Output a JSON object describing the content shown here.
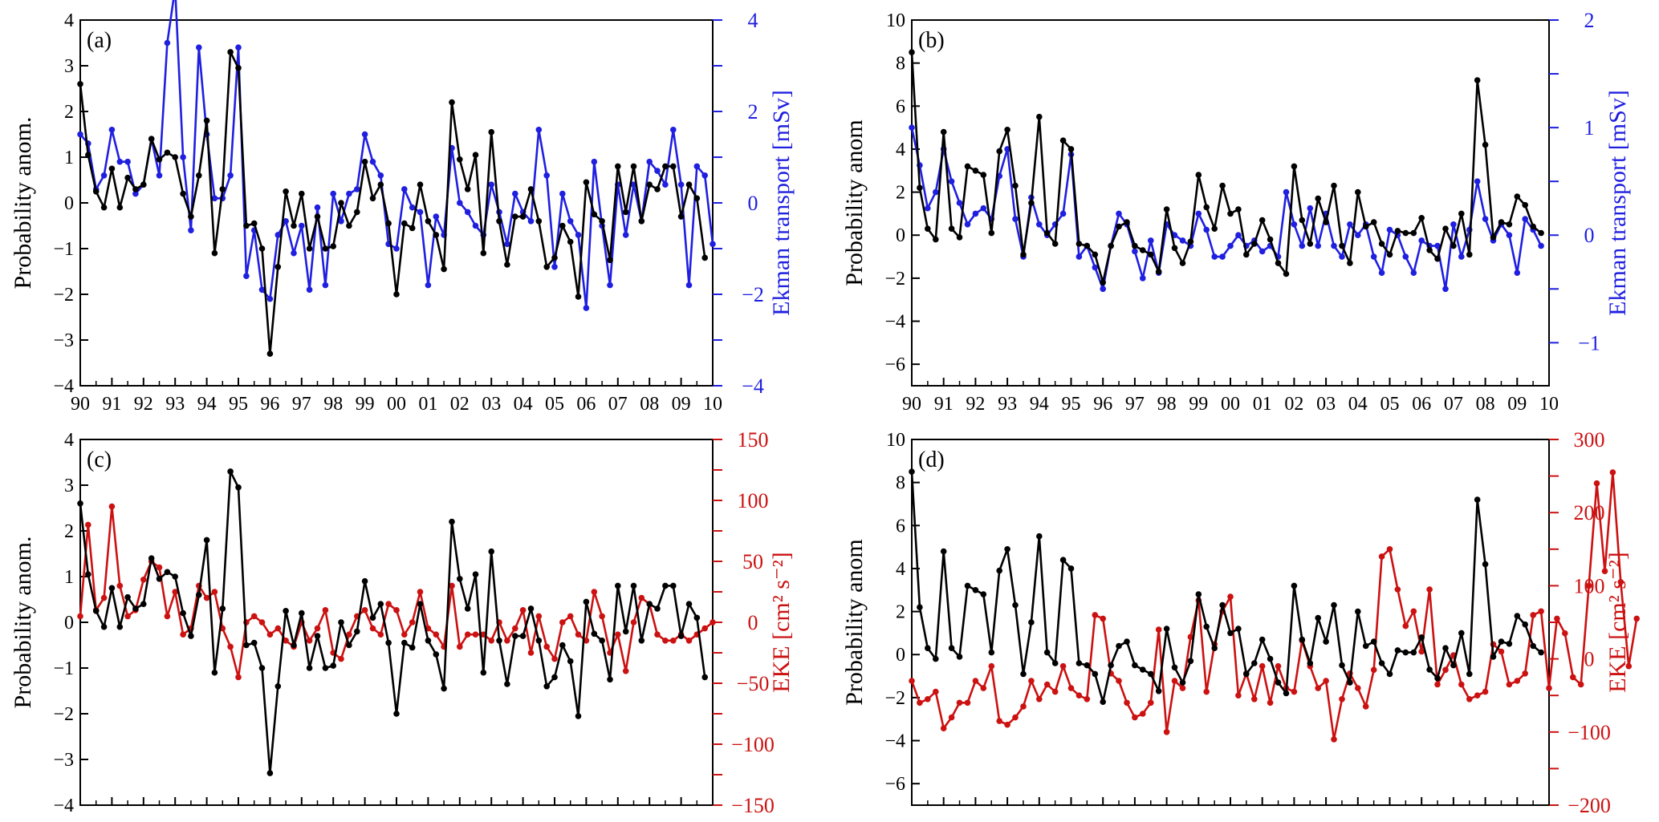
{
  "chart_data": [
    {
      "id": "a",
      "type": "line",
      "panel_label": "(a)",
      "start_year": 1990,
      "samples_per_year": 4,
      "left_axis": {
        "label": "Probability anom.",
        "ylim": [
          -4,
          4
        ],
        "ticks": [
          -4,
          -3,
          -2,
          -1,
          0,
          1,
          2,
          3,
          4
        ],
        "color": "#000000"
      },
      "right_axis": {
        "label": "Ekman transport [mSv]",
        "ylim": [
          -4,
          4
        ],
        "ticks": [
          -4,
          -2,
          0,
          2,
          4
        ],
        "minor_ticks": [
          -3,
          -1,
          1,
          3
        ],
        "color": "#1f1fe0"
      },
      "x_ticks": [
        "90",
        "91",
        "92",
        "93",
        "94",
        "95",
        "96",
        "97",
        "98",
        "99",
        "00",
        "01",
        "02",
        "03",
        "04",
        "05",
        "06",
        "07",
        "08",
        "09",
        "10"
      ],
      "series": [
        {
          "name": "Probability anomaly",
          "axis": "left",
          "color": "#000000",
          "values": [
            2.6,
            1.05,
            0.25,
            -0.1,
            0.75,
            -0.1,
            0.55,
            0.3,
            0.4,
            1.4,
            0.95,
            1.1,
            1.0,
            0.2,
            -0.3,
            0.6,
            1.8,
            -1.1,
            0.3,
            3.3,
            2.95,
            -0.5,
            -0.45,
            -1.0,
            -3.3,
            -1.4,
            0.25,
            -0.5,
            0.2,
            -1.0,
            -0.3,
            -1.0,
            -0.95,
            0.0,
            -0.5,
            -0.2,
            0.9,
            0.1,
            0.4,
            -0.45,
            -2.0,
            -0.45,
            -0.55,
            0.4,
            -0.4,
            -0.7,
            -1.45,
            2.2,
            0.95,
            0.3,
            1.05,
            -1.1,
            1.55,
            -0.4,
            -1.35,
            -0.3,
            -0.3,
            0.3,
            -0.4,
            -1.4,
            -1.2,
            -0.5,
            -0.85,
            -2.05,
            0.45,
            -0.25,
            -0.4,
            -1.25,
            0.8,
            -0.2,
            0.8,
            -0.4,
            0.4,
            0.3,
            0.8,
            0.8,
            -0.3,
            0.4,
            0.1,
            -1.2
          ]
        },
        {
          "name": "Ekman transport",
          "axis": "right",
          "color": "#1f1fe0",
          "values": [
            1.5,
            1.3,
            0.3,
            0.6,
            1.6,
            0.9,
            0.9,
            0.2,
            0.4,
            1.4,
            0.6,
            3.5,
            4.7,
            1.0,
            -0.6,
            3.4,
            1.5,
            0.1,
            0.1,
            0.6,
            3.4,
            -1.6,
            -0.6,
            -1.9,
            -2.1,
            -0.7,
            -0.4,
            -1.1,
            -0.5,
            -1.9,
            -0.1,
            -1.8,
            0.2,
            -0.4,
            0.2,
            0.3,
            1.5,
            0.9,
            0.6,
            -0.9,
            -1.0,
            0.3,
            -0.1,
            -0.2,
            -1.8,
            -0.3,
            -0.7,
            1.2,
            0.0,
            -0.2,
            -0.5,
            -0.7,
            0.4,
            -0.2,
            -0.9,
            0.2,
            -0.2,
            -0.4,
            1.6,
            0.6,
            -1.4,
            0.2,
            -0.4,
            -0.7,
            -2.3,
            0.9,
            -0.5,
            -1.8,
            0.4,
            -0.7,
            0.4,
            -0.4,
            0.9,
            0.7,
            0.4,
            1.6,
            0.4,
            -1.8,
            0.8,
            0.6,
            -0.9
          ]
        }
      ]
    },
    {
      "id": "b",
      "type": "line",
      "panel_label": "(b)",
      "start_year": 1990,
      "samples_per_year": 4,
      "left_axis": {
        "label": "Probability anom",
        "ylim": [
          -7,
          10
        ],
        "ticks": [
          -6,
          -4,
          -2,
          0,
          2,
          4,
          6,
          8,
          10
        ],
        "color": "#000000"
      },
      "right_axis": {
        "label": "Ekman transport [mSv]",
        "ylim": [
          -1.4,
          2
        ],
        "ticks": [
          -1,
          0,
          1,
          2
        ],
        "minor_ticks": [
          -0.5,
          0.5,
          1.5
        ],
        "color": "#1f1fe0"
      },
      "x_ticks": [
        "90",
        "91",
        "92",
        "93",
        "94",
        "95",
        "96",
        "97",
        "98",
        "99",
        "00",
        "01",
        "02",
        "03",
        "04",
        "05",
        "06",
        "07",
        "08",
        "09",
        "10"
      ],
      "series": [
        {
          "name": "Probability anomaly",
          "axis": "left",
          "color": "#000000",
          "values": [
            8.5,
            2.2,
            0.3,
            -0.2,
            4.8,
            0.3,
            -0.1,
            3.2,
            3.0,
            2.8,
            0.1,
            3.9,
            4.9,
            2.3,
            -0.9,
            1.5,
            5.5,
            0.1,
            -0.4,
            4.4,
            4.0,
            -0.4,
            -0.5,
            -0.9,
            -2.2,
            -0.5,
            0.4,
            0.6,
            -0.5,
            -0.7,
            -0.9,
            -1.7,
            1.2,
            -0.6,
            -1.3,
            -0.3,
            2.8,
            1.3,
            0.3,
            2.3,
            1.0,
            1.2,
            -0.9,
            -0.4,
            0.7,
            -0.2,
            -1.3,
            -1.8,
            3.2,
            0.7,
            -0.4,
            1.7,
            0.6,
            2.3,
            -0.5,
            -1.3,
            2.0,
            0.4,
            0.6,
            -0.4,
            -0.9,
            0.2,
            0.1,
            0.1,
            0.8,
            -0.7,
            -1.1,
            0.3,
            -0.5,
            1.0,
            -0.9,
            7.2,
            4.2,
            -0.1,
            0.6,
            0.5,
            1.8,
            1.4,
            0.4,
            0.1
          ]
        },
        {
          "name": "Ekman transport",
          "axis": "right",
          "color": "#1f1fe0",
          "values": [
            1.0,
            0.65,
            0.25,
            0.4,
            0.8,
            0.5,
            0.3,
            0.1,
            0.2,
            0.25,
            0.15,
            0.55,
            0.8,
            0.15,
            -0.2,
            0.35,
            0.1,
            0.0,
            0.1,
            0.2,
            0.75,
            -0.2,
            -0.1,
            -0.3,
            -0.5,
            -0.1,
            0.2,
            0.1,
            -0.15,
            -0.4,
            -0.05,
            -0.35,
            0.1,
            0.0,
            -0.05,
            -0.1,
            0.2,
            0.05,
            -0.2,
            -0.2,
            -0.1,
            0.0,
            -0.1,
            -0.05,
            -0.15,
            -0.1,
            -0.2,
            0.4,
            0.1,
            -0.1,
            0.25,
            -0.1,
            0.2,
            -0.1,
            -0.2,
            0.1,
            0.0,
            0.1,
            -0.2,
            -0.35,
            0.05,
            0.0,
            -0.2,
            -0.35,
            -0.05,
            -0.1,
            -0.1,
            -0.5,
            0.1,
            -0.2,
            0.05,
            0.5,
            0.15,
            -0.05,
            0.1,
            0.0,
            -0.35,
            0.15,
            0.05,
            -0.1
          ]
        }
      ]
    },
    {
      "id": "c",
      "type": "line",
      "panel_label": "(c)",
      "start_year": 1990,
      "samples_per_year": 4,
      "left_axis": {
        "label": "Probability anom.",
        "ylim": [
          -4,
          4
        ],
        "ticks": [
          -4,
          -3,
          -2,
          -1,
          0,
          1,
          2,
          3,
          4
        ],
        "color": "#000000"
      },
      "right_axis": {
        "label": "EKE [cm² s⁻²]",
        "ylim": [
          -150,
          150
        ],
        "ticks": [
          -150,
          -100,
          -50,
          0,
          50,
          100,
          150
        ],
        "minor_ticks": [
          -125,
          -75,
          -25,
          25,
          75,
          125
        ],
        "color": "#cc1111"
      },
      "x_ticks": [],
      "series": [
        {
          "name": "Probability anomaly",
          "axis": "left",
          "color": "#000000",
          "values": [
            2.6,
            1.05,
            0.25,
            -0.1,
            0.75,
            -0.1,
            0.55,
            0.3,
            0.4,
            1.4,
            0.95,
            1.1,
            1.0,
            0.2,
            -0.3,
            0.6,
            1.8,
            -1.1,
            0.3,
            3.3,
            2.95,
            -0.5,
            -0.45,
            -1.0,
            -3.3,
            -1.4,
            0.25,
            -0.5,
            0.2,
            -1.0,
            -0.3,
            -1.0,
            -0.95,
            0.0,
            -0.5,
            -0.2,
            0.9,
            0.1,
            0.4,
            -0.45,
            -2.0,
            -0.45,
            -0.55,
            0.4,
            -0.4,
            -0.7,
            -1.45,
            2.2,
            0.95,
            0.3,
            1.05,
            -1.1,
            1.55,
            -0.4,
            -1.35,
            -0.3,
            -0.3,
            0.3,
            -0.4,
            -1.4,
            -1.2,
            -0.5,
            -0.85,
            -2.05,
            0.45,
            -0.25,
            -0.4,
            -1.25,
            0.8,
            -0.2,
            0.8,
            -0.4,
            0.4,
            0.3,
            0.8,
            0.8,
            -0.3,
            0.4,
            0.1,
            -1.2
          ]
        },
        {
          "name": "EKE",
          "axis": "right",
          "color": "#cc1111",
          "values": [
            5,
            80,
            10,
            20,
            95,
            30,
            5,
            10,
            35,
            50,
            45,
            5,
            25,
            -10,
            -5,
            30,
            20,
            25,
            -5,
            -20,
            -45,
            0,
            5,
            0,
            -10,
            -5,
            -15,
            -20,
            0,
            -15,
            -5,
            10,
            -25,
            -30,
            -10,
            5,
            10,
            -5,
            -10,
            15,
            10,
            -10,
            0,
            25,
            -5,
            -10,
            -20,
            30,
            -20,
            -10,
            -10,
            -10,
            -15,
            0,
            -15,
            -5,
            10,
            -25,
            5,
            -20,
            -30,
            0,
            5,
            -10,
            -15,
            25,
            5,
            -25,
            -10,
            -40,
            0,
            20,
            15,
            -10,
            -15,
            -15,
            -10,
            -15,
            -10,
            -5,
            0
          ]
        }
      ]
    },
    {
      "id": "d",
      "type": "line",
      "panel_label": "(d)",
      "start_year": 1990,
      "samples_per_year": 4,
      "left_axis": {
        "label": "Probability anom",
        "ylim": [
          -7,
          10
        ],
        "ticks": [
          -6,
          -4,
          -2,
          0,
          2,
          4,
          6,
          8,
          10
        ],
        "color": "#000000"
      },
      "right_axis": {
        "label": "EKE [cm² s⁻²]",
        "ylim": [
          -200,
          300
        ],
        "ticks": [
          -200,
          -100,
          0,
          100,
          200,
          300
        ],
        "minor_ticks": [
          -150,
          -50,
          50,
          150,
          250
        ],
        "color": "#cc1111"
      },
      "x_ticks": [],
      "series": [
        {
          "name": "Probability anomaly",
          "axis": "left",
          "color": "#000000",
          "values": [
            8.5,
            2.2,
            0.3,
            -0.2,
            4.8,
            0.3,
            -0.1,
            3.2,
            3.0,
            2.8,
            0.1,
            3.9,
            4.9,
            2.3,
            -0.9,
            1.5,
            5.5,
            0.1,
            -0.4,
            4.4,
            4.0,
            -0.4,
            -0.5,
            -0.9,
            -2.2,
            -0.5,
            0.4,
            0.6,
            -0.5,
            -0.7,
            -0.9,
            -1.7,
            1.2,
            -0.6,
            -1.3,
            -0.3,
            2.8,
            1.3,
            0.3,
            2.3,
            1.0,
            1.2,
            -0.9,
            -0.4,
            0.7,
            -0.2,
            -1.3,
            -1.8,
            3.2,
            0.7,
            -0.4,
            1.7,
            0.6,
            2.3,
            -0.5,
            -1.3,
            2.0,
            0.4,
            0.6,
            -0.4,
            -0.9,
            0.2,
            0.1,
            0.1,
            0.8,
            -0.7,
            -1.1,
            0.3,
            -0.5,
            1.0,
            -0.9,
            7.2,
            4.2,
            -0.1,
            0.6,
            0.5,
            1.8,
            1.4,
            0.4,
            0.1
          ]
        },
        {
          "name": "EKE",
          "axis": "right",
          "color": "#cc1111",
          "values": [
            -30,
            -60,
            -55,
            -45,
            -95,
            -80,
            -60,
            -60,
            -30,
            -40,
            -10,
            -85,
            -90,
            -80,
            -65,
            -30,
            -55,
            -35,
            -45,
            -10,
            -40,
            -50,
            -55,
            60,
            55,
            -20,
            -30,
            -60,
            -80,
            -75,
            -60,
            40,
            -100,
            -30,
            -40,
            30,
            80,
            -45,
            20,
            65,
            85,
            -50,
            -20,
            -55,
            -10,
            -60,
            -10,
            -40,
            -45,
            25,
            -10,
            -40,
            -30,
            -110,
            -55,
            -20,
            -40,
            -65,
            -15,
            140,
            150,
            95,
            45,
            65,
            10,
            95,
            -35,
            -15,
            5,
            -35,
            -55,
            -50,
            -45,
            20,
            10,
            -35,
            -30,
            -20,
            60,
            65,
            -40,
            55,
            35,
            -25,
            -35,
            100,
            240,
            120,
            255,
            105,
            -10,
            55
          ]
        }
      ]
    }
  ]
}
